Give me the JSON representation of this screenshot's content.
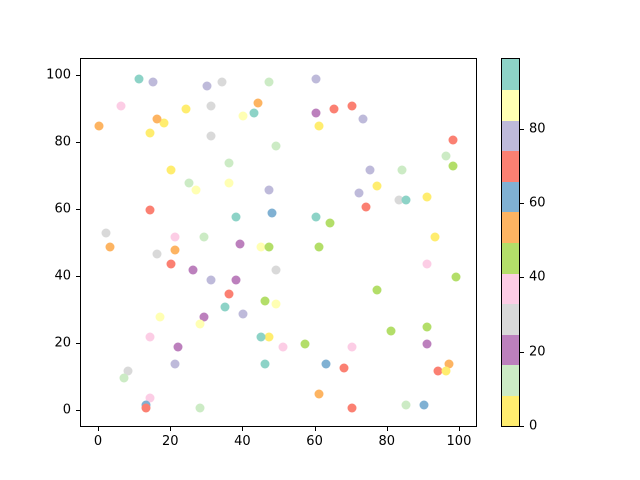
{
  "chart_data": {
    "type": "scatter",
    "title": "",
    "xlabel": "",
    "ylabel": "",
    "xlim": [
      -5,
      105
    ],
    "ylim": [
      -5,
      105
    ],
    "x_ticks": [
      0,
      20,
      40,
      60,
      80,
      100
    ],
    "y_ticks": [
      0,
      20,
      40,
      60,
      80,
      100
    ],
    "grid": false,
    "marker_size_px": 9,
    "palette": {
      "teal": "#8dd3c7",
      "paleyellow": "#ffffb3",
      "lavender": "#bebada",
      "salmon": "#fb8072",
      "blue": "#80b1d3",
      "orange": "#fdb462",
      "green": "#b3de69",
      "pink": "#fccde5",
      "gray": "#d9d9d9",
      "purple": "#bc80bd",
      "palegreen": "#ccebc5",
      "yellow": "#ffed6f"
    },
    "colorbar": {
      "position": "right",
      "range": [
        0,
        99
      ],
      "ticks": [
        0,
        20,
        40,
        60,
        80
      ],
      "colors_bottom_to_top": [
        "#ffed6f",
        "#ccebc5",
        "#bc80bd",
        "#d9d9d9",
        "#fccde5",
        "#b3de69",
        "#fdb462",
        "#80b1d3",
        "#fb8072",
        "#bebada",
        "#ffffb3",
        "#8dd3c7"
      ]
    },
    "points_format": [
      "x",
      "y",
      "color_key"
    ],
    "points": [
      [
        11,
        99,
        "teal"
      ],
      [
        15,
        98,
        "lavender"
      ],
      [
        30,
        97,
        "lavender"
      ],
      [
        6,
        91,
        "pink"
      ],
      [
        31,
        91,
        "gray"
      ],
      [
        24,
        90,
        "yellow"
      ],
      [
        18,
        86,
        "yellow"
      ],
      [
        16,
        87,
        "orange"
      ],
      [
        0,
        85,
        "orange"
      ],
      [
        14,
        83,
        "yellow"
      ],
      [
        31,
        82,
        "gray"
      ],
      [
        20,
        72,
        "yellow"
      ],
      [
        25,
        68,
        "palegreen"
      ],
      [
        34,
        98,
        "gray"
      ],
      [
        47,
        98,
        "palegreen"
      ],
      [
        60,
        99,
        "lavender"
      ],
      [
        44,
        92,
        "orange"
      ],
      [
        65,
        90,
        "salmon"
      ],
      [
        60,
        89,
        "purple"
      ],
      [
        40,
        88,
        "paleyellow"
      ],
      [
        43,
        89,
        "teal"
      ],
      [
        61,
        85,
        "yellow"
      ],
      [
        49,
        79,
        "palegreen"
      ],
      [
        36,
        74,
        "palegreen"
      ],
      [
        36,
        68,
        "paleyellow"
      ],
      [
        70,
        91,
        "salmon"
      ],
      [
        73,
        87,
        "lavender"
      ],
      [
        98,
        81,
        "salmon"
      ],
      [
        96,
        76,
        "palegreen"
      ],
      [
        98,
        73,
        "green"
      ],
      [
        75,
        72,
        "lavender"
      ],
      [
        84,
        72,
        "palegreen"
      ],
      [
        27,
        66,
        "paleyellow"
      ],
      [
        14,
        60,
        "salmon"
      ],
      [
        2,
        53,
        "gray"
      ],
      [
        3,
        49,
        "orange"
      ],
      [
        21,
        52,
        "pink"
      ],
      [
        21,
        48,
        "orange"
      ],
      [
        29,
        52,
        "palegreen"
      ],
      [
        16,
        47,
        "gray"
      ],
      [
        20,
        44,
        "salmon"
      ],
      [
        26,
        42,
        "purple"
      ],
      [
        47,
        66,
        "lavender"
      ],
      [
        38,
        58,
        "teal"
      ],
      [
        48,
        59,
        "blue"
      ],
      [
        60,
        58,
        "teal"
      ],
      [
        64,
        56,
        "green"
      ],
      [
        39,
        50,
        "purple"
      ],
      [
        45,
        49,
        "paleyellow"
      ],
      [
        47,
        49,
        "green"
      ],
      [
        61,
        49,
        "green"
      ],
      [
        49,
        42,
        "gray"
      ],
      [
        31,
        39,
        "lavender"
      ],
      [
        38,
        39,
        "purple"
      ],
      [
        36,
        35,
        "salmon"
      ],
      [
        46,
        33,
        "green"
      ],
      [
        49,
        32,
        "paleyellow"
      ],
      [
        77,
        67,
        "yellow"
      ],
      [
        72,
        65,
        "lavender"
      ],
      [
        83,
        63,
        "gray"
      ],
      [
        85,
        63,
        "teal"
      ],
      [
        91,
        64,
        "yellow"
      ],
      [
        74,
        61,
        "salmon"
      ],
      [
        93,
        52,
        "yellow"
      ],
      [
        91,
        44,
        "pink"
      ],
      [
        99,
        40,
        "green"
      ],
      [
        77,
        36,
        "green"
      ],
      [
        17,
        28,
        "paleyellow"
      ],
      [
        29,
        28,
        "purple"
      ],
      [
        28,
        26,
        "paleyellow"
      ],
      [
        14,
        22,
        "pink"
      ],
      [
        22,
        19,
        "purple"
      ],
      [
        21,
        14,
        "lavender"
      ],
      [
        8,
        12,
        "gray"
      ],
      [
        7,
        10,
        "palegreen"
      ],
      [
        14,
        4,
        "pink"
      ],
      [
        13,
        2,
        "blue"
      ],
      [
        13,
        1,
        "salmon"
      ],
      [
        35,
        31,
        "teal"
      ],
      [
        40,
        29,
        "lavender"
      ],
      [
        47,
        22,
        "yellow"
      ],
      [
        45,
        22,
        "teal"
      ],
      [
        51,
        19,
        "pink"
      ],
      [
        57,
        20,
        "green"
      ],
      [
        46,
        14,
        "teal"
      ],
      [
        63,
        14,
        "blue"
      ],
      [
        61,
        5,
        "orange"
      ],
      [
        28,
        1,
        "palegreen"
      ],
      [
        81,
        24,
        "green"
      ],
      [
        91,
        25,
        "green"
      ],
      [
        91,
        20,
        "purple"
      ],
      [
        70,
        19,
        "pink"
      ],
      [
        68,
        13,
        "salmon"
      ],
      [
        97,
        14,
        "orange"
      ],
      [
        94,
        12,
        "salmon"
      ],
      [
        96,
        12,
        "yellow"
      ],
      [
        70,
        1,
        "salmon"
      ],
      [
        85,
        2,
        "palegreen"
      ],
      [
        90,
        2,
        "blue"
      ]
    ]
  }
}
